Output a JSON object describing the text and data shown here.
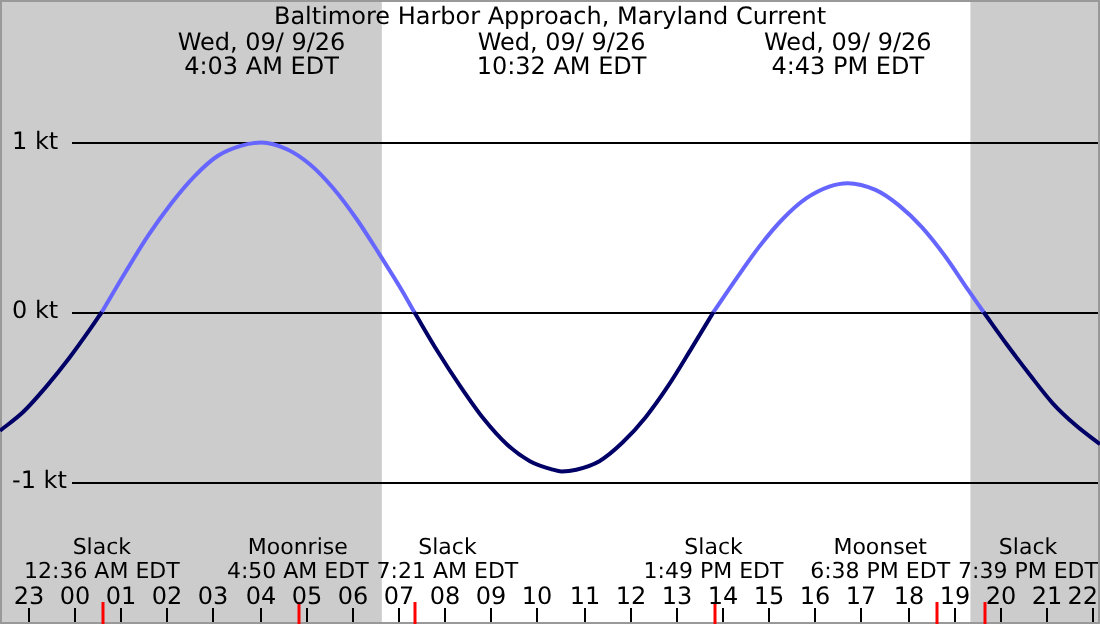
{
  "chart_data": {
    "type": "line",
    "title": "Baltimore Harbor Approach, Maryland Current",
    "xlim": [
      "--09-08T22:24",
      "--09-09T22:10"
    ],
    "ylim": [
      -1.84,
      1.84
    ],
    "xticks": [
      {
        "value": "--09-08T23:00",
        "label": "23"
      },
      {
        "value": "--09-09T00:00",
        "label": "00"
      },
      {
        "value": "--09-09T00:36",
        "label": null
      },
      {
        "value": "--09-09T01:00",
        "label": "01"
      },
      {
        "value": "--09-09T02:00",
        "label": "02"
      },
      {
        "value": "--09-09T03:00",
        "label": "03"
      },
      {
        "value": "--09-09T04:00",
        "label": "04"
      },
      {
        "value": "--09-09T04:50",
        "label": null
      },
      {
        "value": "--09-09T05:00",
        "label": "05"
      },
      {
        "value": "--09-09T06:00",
        "label": "06"
      },
      {
        "value": "--09-09T07:00",
        "label": "07"
      },
      {
        "value": "--09-09T07:21",
        "label": null
      },
      {
        "value": "--09-09T08:00",
        "label": "08"
      },
      {
        "value": "--09-09T09:00",
        "label": "09"
      },
      {
        "value": "--09-09T10:00",
        "label": "10"
      },
      {
        "value": "--09-09T11:00",
        "label": "11"
      },
      {
        "value": "--09-09T12:00",
        "label": "12"
      },
      {
        "value": "--09-09T13:00",
        "label": "13"
      },
      {
        "value": "--09-09T13:49",
        "label": null
      },
      {
        "value": "--09-09T14:00",
        "label": "14"
      },
      {
        "value": "--09-09T15:00",
        "label": "15"
      },
      {
        "value": "--09-09T16:00",
        "label": "16"
      },
      {
        "value": "--09-09T17:00",
        "label": "17"
      },
      {
        "value": "--09-09T18:00",
        "label": "18"
      },
      {
        "value": "--09-09T18:38",
        "label": null
      },
      {
        "value": "--09-09T19:00",
        "label": "19"
      },
      {
        "value": "--09-09T19:39",
        "label": null
      },
      {
        "value": "--09-09T20:00",
        "label": "20"
      },
      {
        "value": "--09-09T21:00",
        "label": "21"
      },
      {
        "value": "--09-09T22:00",
        "label": "22"
      }
    ],
    "yticks": [
      {
        "value": 1,
        "label": "1 kt"
      },
      {
        "value": 0,
        "label": "0 kt"
      },
      {
        "value": -1,
        "label": "-1 kt"
      }
    ],
    "grid": "y",
    "marker": "none",
    "legend": false,
    "series": [
      {
        "color": "#000066",
        "x": [
          "--09-08T22:24",
          "--09-08T22:54",
          "--09-08T23:24",
          "--09-08T23:54",
          "--09-09T00:21",
          "--09-09T00:36",
          null,
          "--09-09T07:21",
          "--09-09T07:51",
          "--09-09T08:21",
          "--09-09T08:51",
          "--09-09T09:21",
          "--09-09T09:51",
          "--09-09T10:21",
          "--09-09T10:32",
          "--09-09T10:51",
          "--09-09T11:21",
          "--09-09T11:51",
          "--09-09T12:21",
          "--09-09T12:51",
          "--09-09T13:21",
          "--09-09T13:49",
          null,
          "--09-09T19:39",
          "--09-09T20:09",
          "--09-09T20:39",
          "--09-09T21:09",
          "--09-09T21:39",
          "--09-09T22:10"
        ],
        "values": [
          -0.7,
          -0.59,
          -0.44,
          -0.27,
          -0.1,
          0,
          null,
          0,
          -0.23,
          -0.44,
          -0.63,
          -0.78,
          -0.88,
          -0.93,
          -0.94,
          -0.93,
          -0.88,
          -0.77,
          -0.62,
          -0.43,
          -0.21,
          0,
          null,
          0,
          -0.19,
          -0.37,
          -0.54,
          -0.67,
          -0.78
        ]
      },
      {
        "color": "#6666ff",
        "x": [
          "--09-09T00:36",
          "--09-09T01:06",
          "--09-09T01:36",
          "--09-09T02:06",
          "--09-09T02:36",
          "--09-09T03:06",
          "--09-09T03:36",
          "--09-09T04:03",
          "--09-09T04:36",
          "--09-09T05:06",
          "--09-09T05:36",
          "--09-09T06:06",
          "--09-09T06:36",
          "--09-09T07:06",
          "--09-09T07:21",
          null,
          "--09-09T13:49",
          "--09-09T14:19",
          "--09-09T14:49",
          "--09-09T15:19",
          "--09-09T15:49",
          "--09-09T16:19",
          "--09-09T16:43",
          "--09-09T17:19",
          "--09-09T17:49",
          "--09-09T18:19",
          "--09-09T18:49",
          "--09-09T19:19",
          "--09-09T19:39"
        ],
        "values": [
          0,
          0.23,
          0.45,
          0.64,
          0.8,
          0.92,
          0.98,
          1.0,
          0.96,
          0.87,
          0.73,
          0.55,
          0.34,
          0.12,
          0,
          null,
          0,
          0.2,
          0.39,
          0.55,
          0.67,
          0.74,
          0.76,
          0.72,
          0.63,
          0.5,
          0.33,
          0.13,
          0
        ]
      }
    ],
    "bands": [
      {
        "axis": "x",
        "from": "--09-08T22:24",
        "to": "--09-09T06:39",
        "color": "#cccccc"
      },
      {
        "axis": "x",
        "from": "--09-09T19:22",
        "to": "--09-09T22:10",
        "color": "#cccccc"
      }
    ],
    "annotations": [
      "Wed, 09/ 9/26\n4:03 AM EDT",
      "Wed, 09/ 9/26\n10:32 AM EDT",
      "Wed, 09/ 9/26\n4:43 PM EDT",
      "Slack\n12:36 AM EDT",
      "Moonrise\n4:50 AM EDT",
      "Slack\n7:21 AM EDT",
      "Slack\n1:49 PM EDT",
      "Moonset\n6:38 PM EDT",
      "Slack\n7:39 PM EDT"
    ]
  }
}
